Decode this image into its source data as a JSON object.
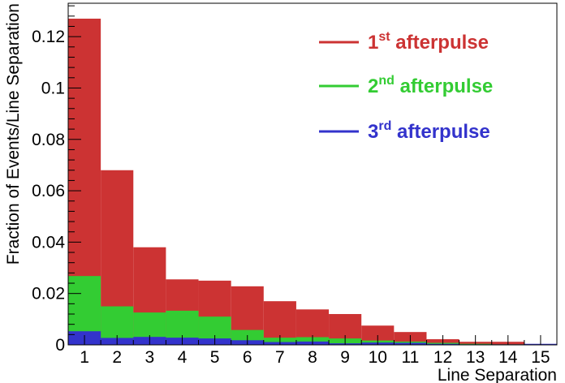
{
  "chart_data": {
    "type": "bar",
    "title": "",
    "xlabel": "Line Separation",
    "ylabel": "Fraction of Events/Line Separation",
    "xlim": [
      0.5,
      15.5
    ],
    "ylim": [
      0,
      0.133
    ],
    "categories": [
      "1",
      "2",
      "3",
      "4",
      "5",
      "6",
      "7",
      "8",
      "9",
      "10",
      "11",
      "12",
      "13",
      "14",
      "15"
    ],
    "yticks": [
      0,
      0.02,
      0.04,
      0.06,
      0.08,
      0.1,
      0.12
    ],
    "ytick_labels": [
      "0",
      "0.02",
      "0.04",
      "0.06",
      "0.08",
      "0.1",
      "0.12"
    ],
    "grid": false,
    "legend_position": "top-right",
    "series": [
      {
        "name": "1st afterpulse",
        "label_main": "1",
        "label_sup": "st",
        "label_rest": " afterpulse",
        "color": "#cc3333",
        "values": [
          0.127,
          0.068,
          0.038,
          0.0255,
          0.025,
          0.0228,
          0.017,
          0.0138,
          0.012,
          0.0075,
          0.005,
          0.0022,
          0.0012,
          0.0012,
          0.0002
        ]
      },
      {
        "name": "2nd afterpulse",
        "label_main": "2",
        "label_sup": "nd",
        "label_rest": " afterpulse",
        "color": "#33cc33",
        "values": [
          0.0268,
          0.015,
          0.0126,
          0.0133,
          0.011,
          0.0058,
          0.0028,
          0.003,
          0.0025,
          0.0017,
          0.0013,
          0.0008,
          0.0004,
          0.0002,
          0.0002
        ]
      },
      {
        "name": "3rd afterpulse",
        "label_main": "3",
        "label_sup": "rd",
        "label_rest": " afterpulse",
        "color": "#3333cc",
        "values": [
          0.0053,
          0.0027,
          0.0031,
          0.0028,
          0.0025,
          0.0018,
          0.0011,
          0.0013,
          0.0006,
          0.0009,
          0.0008,
          0.0004,
          0.0002,
          0.0002,
          0.0004
        ]
      }
    ]
  }
}
